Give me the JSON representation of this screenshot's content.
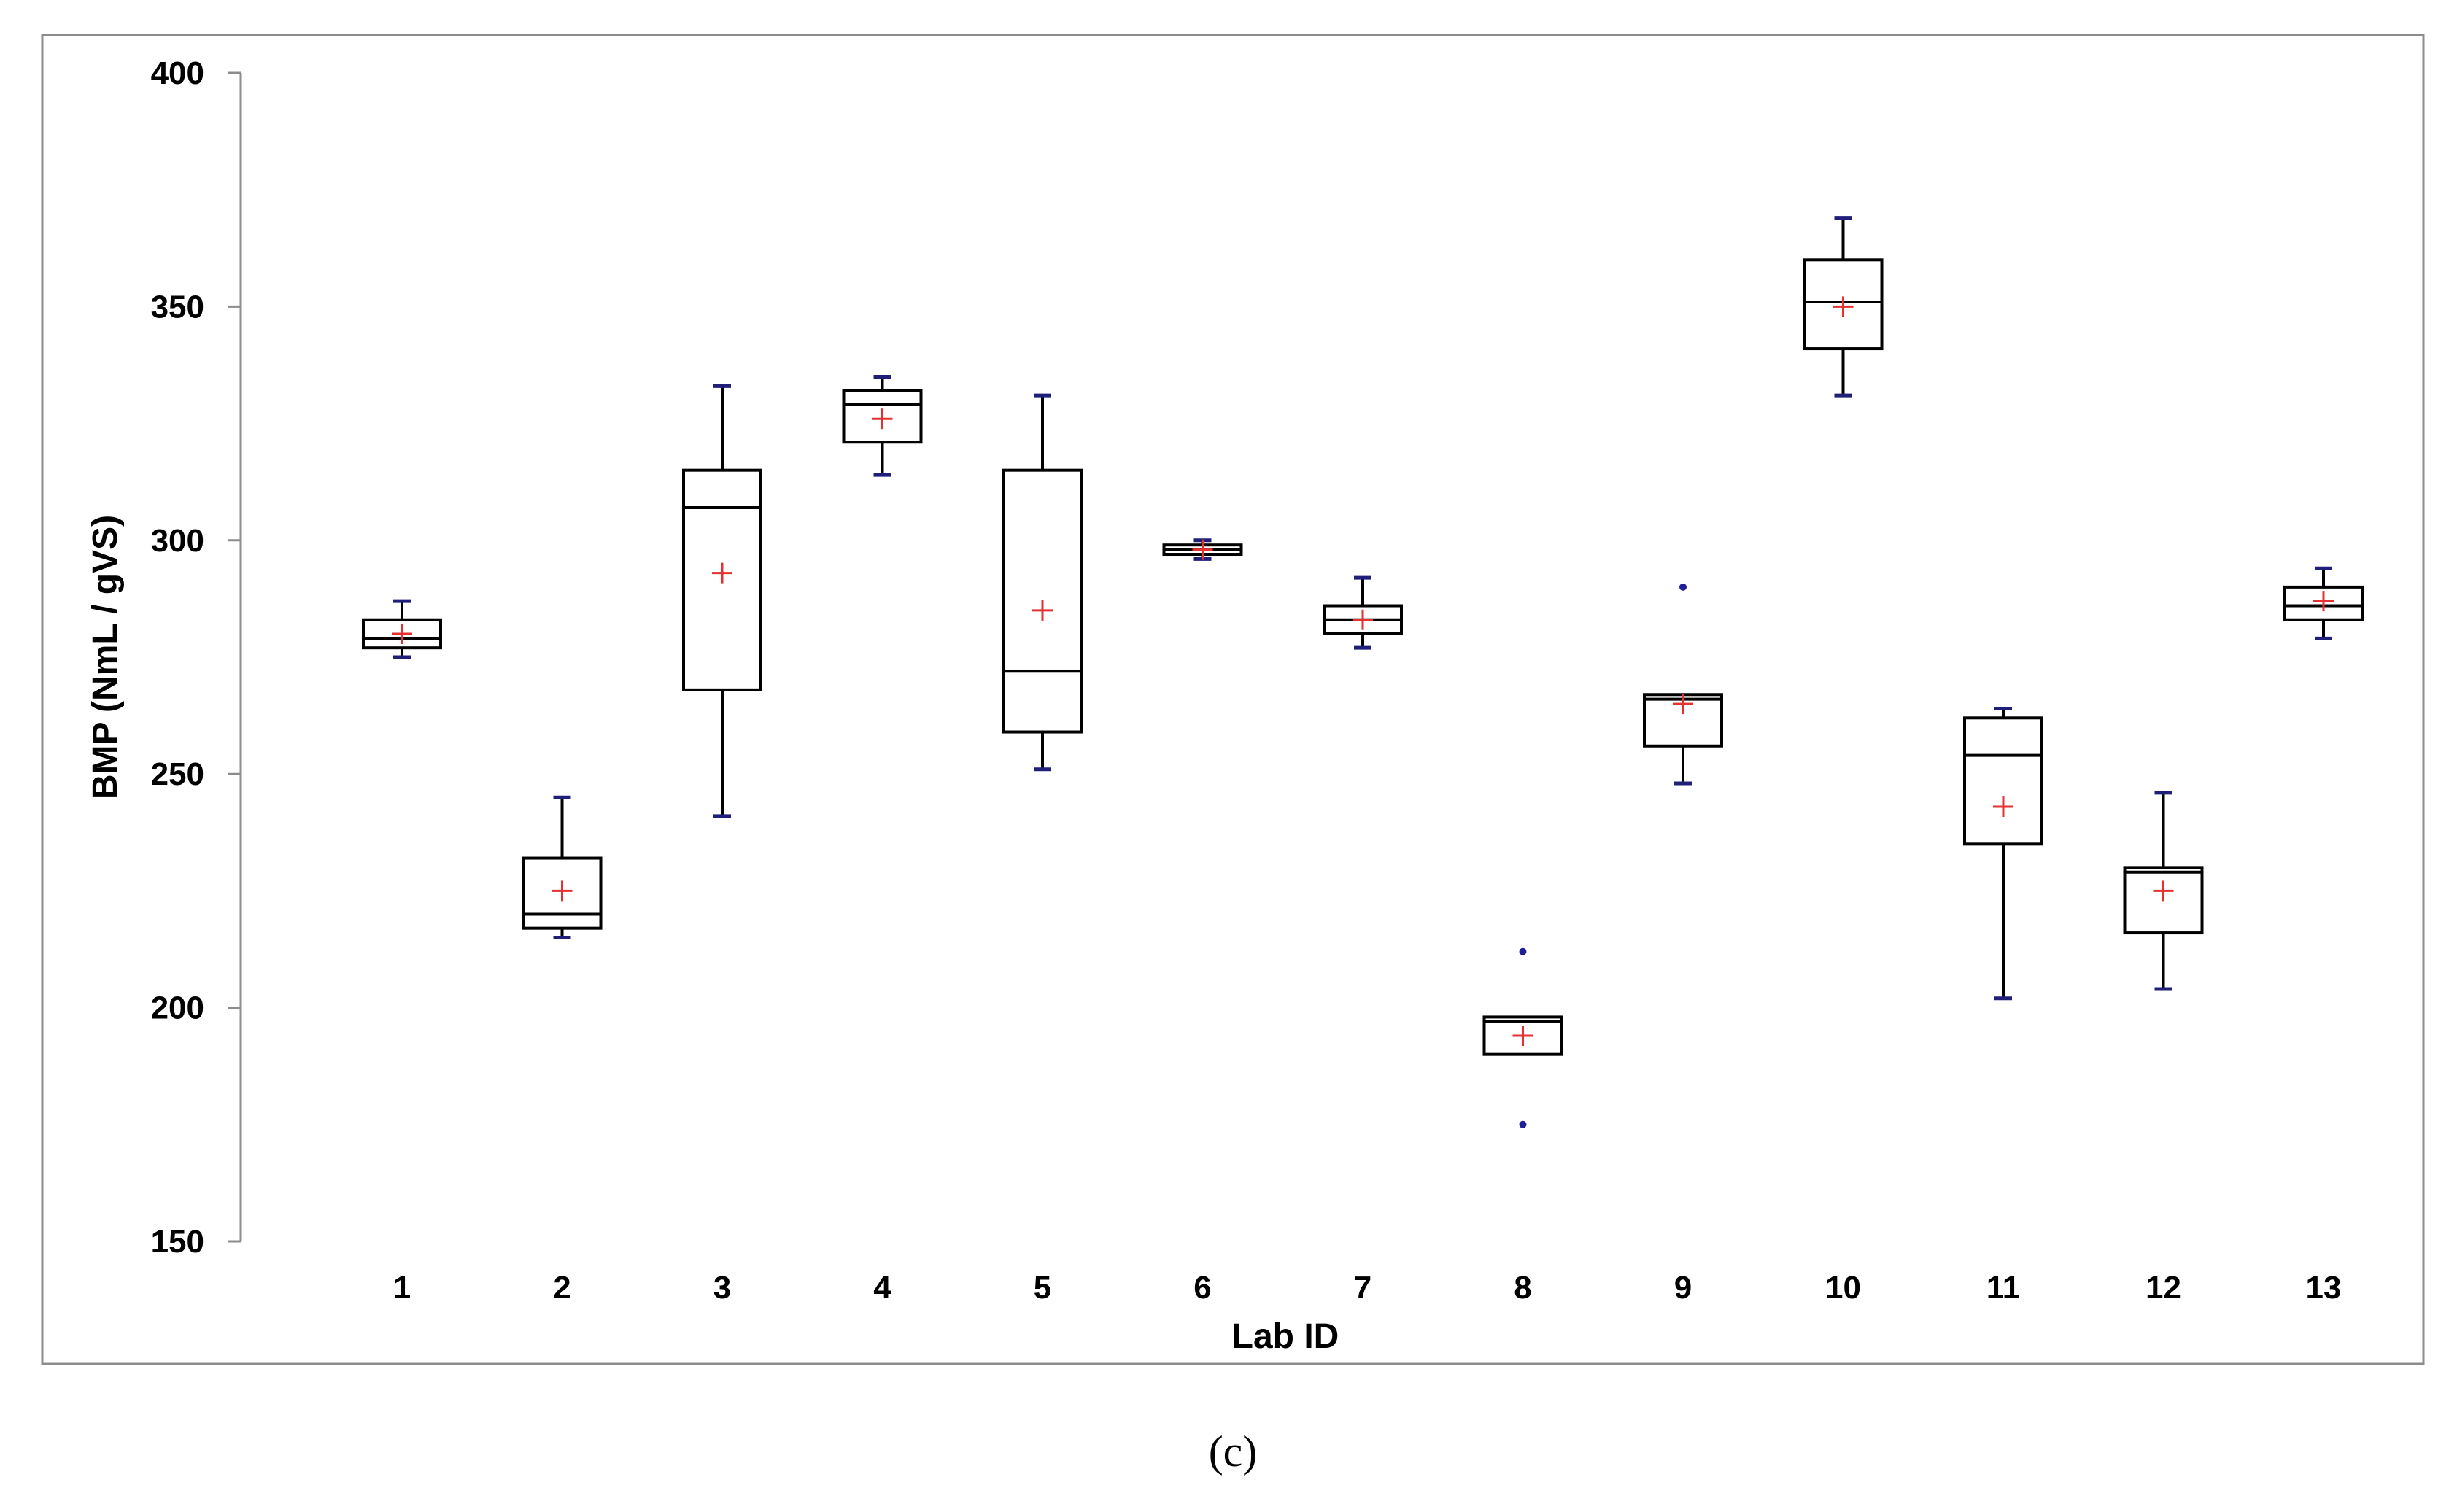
{
  "chart_data": {
    "type": "box",
    "title": "",
    "xlabel": "Lab ID",
    "ylabel": "BMP (NmL / gVS)",
    "ylim": [
      150,
      400
    ],
    "yticks": [
      150,
      200,
      250,
      300,
      350,
      400
    ],
    "grid": false,
    "legend": "none",
    "categories": [
      "1",
      "2",
      "3",
      "4",
      "5",
      "6",
      "7",
      "8",
      "9",
      "10",
      "11",
      "12",
      "13"
    ],
    "boxes": [
      {
        "lab": "1",
        "whisker_low": 275,
        "q1": 277,
        "median": 279,
        "q3": 283,
        "whisker_high": 287,
        "mean": 280,
        "outliers": []
      },
      {
        "lab": "2",
        "whisker_low": 215,
        "q1": 217,
        "median": 220,
        "q3": 232,
        "whisker_high": 245,
        "mean": 225,
        "outliers": []
      },
      {
        "lab": "3",
        "whisker_low": 241,
        "q1": 268,
        "median": 307,
        "q3": 315,
        "whisker_high": 333,
        "mean": 293,
        "outliers": []
      },
      {
        "lab": "4",
        "whisker_low": 314,
        "q1": 321,
        "median": 329,
        "q3": 332,
        "whisker_high": 335,
        "mean": 326,
        "outliers": []
      },
      {
        "lab": "5",
        "whisker_low": 251,
        "q1": 259,
        "median": 272,
        "q3": 315,
        "whisker_high": 331,
        "mean": 285,
        "outliers": []
      },
      {
        "lab": "6",
        "whisker_low": 296,
        "q1": 297,
        "median": 298,
        "q3": 299,
        "whisker_high": 300,
        "mean": 298,
        "outliers": []
      },
      {
        "lab": "7",
        "whisker_low": 277,
        "q1": 280,
        "median": 283,
        "q3": 286,
        "whisker_high": 292,
        "mean": 283,
        "outliers": []
      },
      {
        "lab": "8",
        "whisker_low": 190,
        "q1": 190,
        "median": 197,
        "q3": 198,
        "whisker_high": 198,
        "mean": 194,
        "outliers": [
          175,
          212
        ]
      },
      {
        "lab": "9",
        "whisker_low": 248,
        "q1": 256,
        "median": 266,
        "q3": 267,
        "whisker_high": 267,
        "mean": 265,
        "outliers": [
          290
        ]
      },
      {
        "lab": "10",
        "whisker_low": 331,
        "q1": 341,
        "median": 351,
        "q3": 360,
        "whisker_high": 369,
        "mean": 350,
        "outliers": []
      },
      {
        "lab": "11",
        "whisker_low": 202,
        "q1": 235,
        "median": 254,
        "q3": 262,
        "whisker_high": 264,
        "mean": 243,
        "outliers": []
      },
      {
        "lab": "12",
        "whisker_low": 204,
        "q1": 216,
        "median": 229,
        "q3": 230,
        "whisker_high": 246,
        "mean": 225,
        "outliers": []
      },
      {
        "lab": "13",
        "whisker_low": 279,
        "q1": 283,
        "median": 286,
        "q3": 290,
        "whisker_high": 294,
        "mean": 287,
        "outliers": []
      }
    ],
    "colors": {
      "box": "#000000",
      "whisker_cap": "#1f1f7a",
      "mean_marker": "#e53030",
      "outlier": "#1f1f9a",
      "frame": "#8c8c8c",
      "axis": "#8c8c8c"
    }
  },
  "caption": "(c)"
}
